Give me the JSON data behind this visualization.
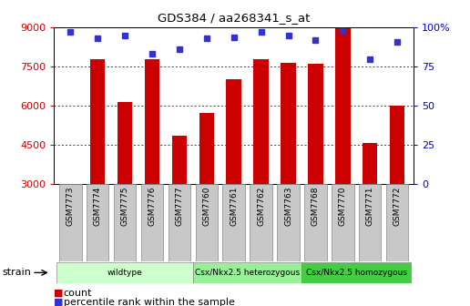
{
  "title": "GDS384 / aa268341_s_at",
  "samples": [
    "GSM7773",
    "GSM7774",
    "GSM7775",
    "GSM7776",
    "GSM7777",
    "GSM7760",
    "GSM7761",
    "GSM7762",
    "GSM7763",
    "GSM7768",
    "GSM7770",
    "GSM7771",
    "GSM7772"
  ],
  "counts": [
    3000,
    7800,
    6150,
    7800,
    4850,
    5700,
    7000,
    7800,
    7650,
    7600,
    9000,
    4550,
    6000
  ],
  "percentiles": [
    97,
    93,
    95,
    83,
    86,
    93,
    94,
    97,
    95,
    92,
    98,
    80,
    91
  ],
  "bar_color": "#cc0000",
  "dot_color": "#3333cc",
  "ylim_left": [
    3000,
    9000
  ],
  "ylim_right": [
    0,
    100
  ],
  "yticks_left": [
    3000,
    4500,
    6000,
    7500,
    9000
  ],
  "yticks_right": [
    0,
    25,
    50,
    75,
    100
  ],
  "groups": [
    {
      "label": "wildtype",
      "start": 0,
      "end": 5,
      "color": "#ccffcc"
    },
    {
      "label": "Csx/Nkx2.5 heterozygous",
      "start": 5,
      "end": 9,
      "color": "#99ee99"
    },
    {
      "label": "Csx/Nkx2.5 homozygous",
      "start": 9,
      "end": 13,
      "color": "#44cc44"
    }
  ],
  "strain_label": "strain",
  "legend_count_label": "count",
  "legend_pct_label": "percentile rank within the sample",
  "bar_color_hex": "#cc0000",
  "dot_color_hex": "#3333cc",
  "tick_color_left": "#cc0000",
  "tick_color_right": "#0000cc",
  "grid_color": "#000000",
  "label_box_color": "#c8c8c8",
  "label_box_edge": "#888888"
}
